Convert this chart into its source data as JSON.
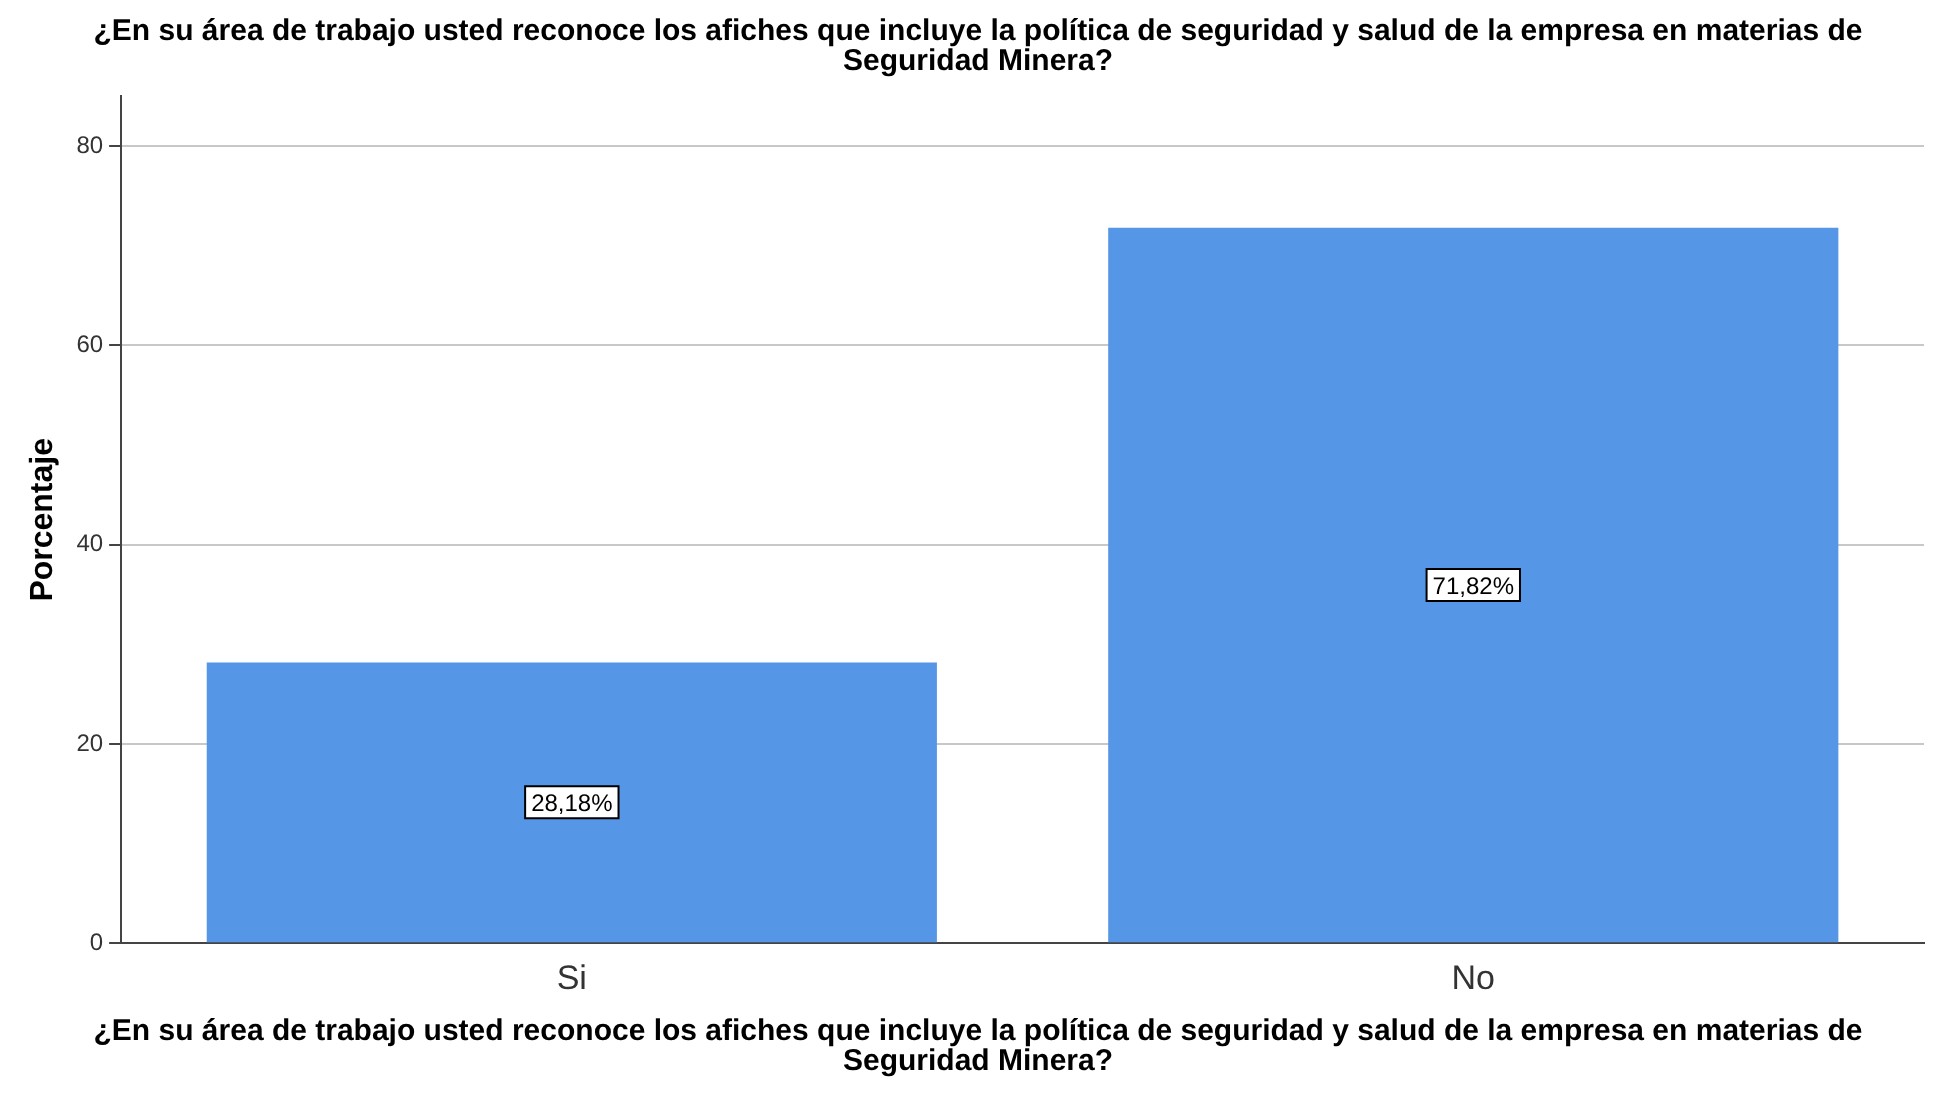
{
  "chart_data": {
    "type": "bar",
    "title": "¿En su área de trabajo usted reconoce los afiches que incluye la política de seguridad y salud de la empresa en materias de Seguridad Minera?",
    "xlabel": "¿En su área de trabajo usted reconoce los afiches que incluye la política de seguridad y salud de la empresa en materias de Seguridad Minera?",
    "ylabel": "Porcentaje",
    "categories": [
      "Si",
      "No"
    ],
    "values": [
      28.18,
      71.82
    ],
    "value_labels": [
      "28,18%",
      "71,82%"
    ],
    "color": "#5596e6",
    "ylim": [
      0,
      85
    ],
    "yticks": [
      0,
      20,
      40,
      60,
      80
    ],
    "grid": "y",
    "legend": false
  }
}
